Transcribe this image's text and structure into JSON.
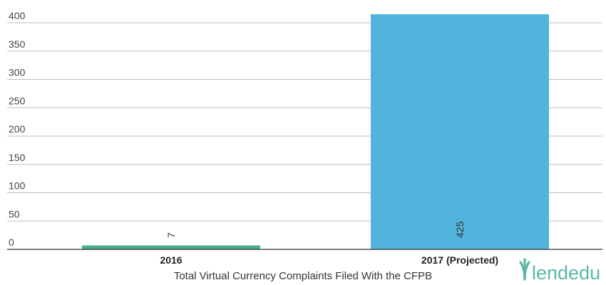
{
  "chart_data": {
    "type": "bar",
    "categories": [
      "2016",
      "2017 (Projected)"
    ],
    "values": [
      7,
      425
    ],
    "bar_colors": [
      "#4cae8b",
      "#52b4dc"
    ],
    "xlabel": "Total Virtual Currency Complaints Filed With the CFPB",
    "ylabel": "",
    "ylim": [
      0,
      400
    ],
    "yticks": [
      0,
      50,
      100,
      150,
      200,
      250,
      300,
      350,
      400
    ],
    "grid": true,
    "data_labels": [
      "7",
      "425"
    ]
  },
  "logo": {
    "text": "lendedu",
    "color": "#5bb8a8",
    "icon": "lendedu-logo-icon"
  }
}
